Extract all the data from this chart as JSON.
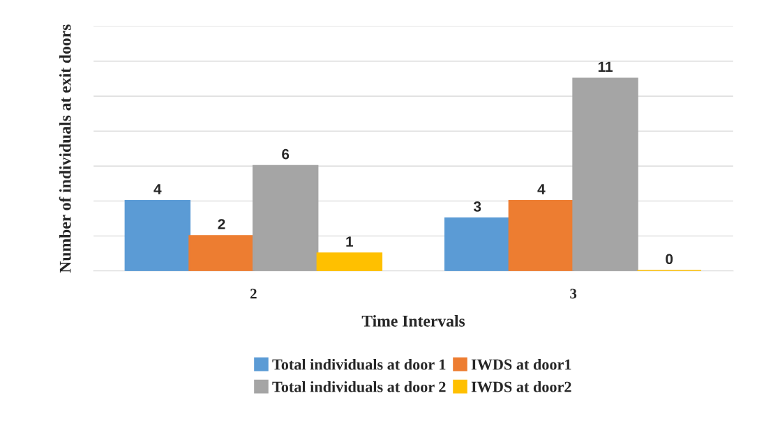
{
  "chart_data": {
    "type": "bar",
    "xlabel": "Time Intervals",
    "ylabel": "Number of individuals at exit doors",
    "categories": [
      "2",
      "3"
    ],
    "series": [
      {
        "name": "Total individuals at door 1",
        "color": "#5b9bd5",
        "values": [
          4,
          3
        ]
      },
      {
        "name": "IWDS at door1",
        "color": "#ed7d31",
        "values": [
          2,
          4
        ]
      },
      {
        "name": "Total individuals at door 2",
        "color": "#a5a5a5",
        "values": [
          6,
          11
        ]
      },
      {
        "name": "IWDS at door2",
        "color": "#ffc000",
        "values": [
          1,
          0
        ]
      }
    ],
    "ylim": [
      0,
      14
    ],
    "yticks": [
      {
        "value": 0,
        "label": null
      },
      {
        "value": 2,
        "label": null
      },
      {
        "value": 4,
        "label": null
      },
      {
        "value": 6,
        "label": null
      },
      {
        "value": 8,
        "label": null
      },
      {
        "value": 10,
        "label": null
      },
      {
        "value": 12,
        "label": null
      },
      {
        "value": 14,
        "label": null
      }
    ],
    "tick_labels": "x",
    "grid": "y",
    "data_labels": true,
    "legend": "bottom"
  }
}
